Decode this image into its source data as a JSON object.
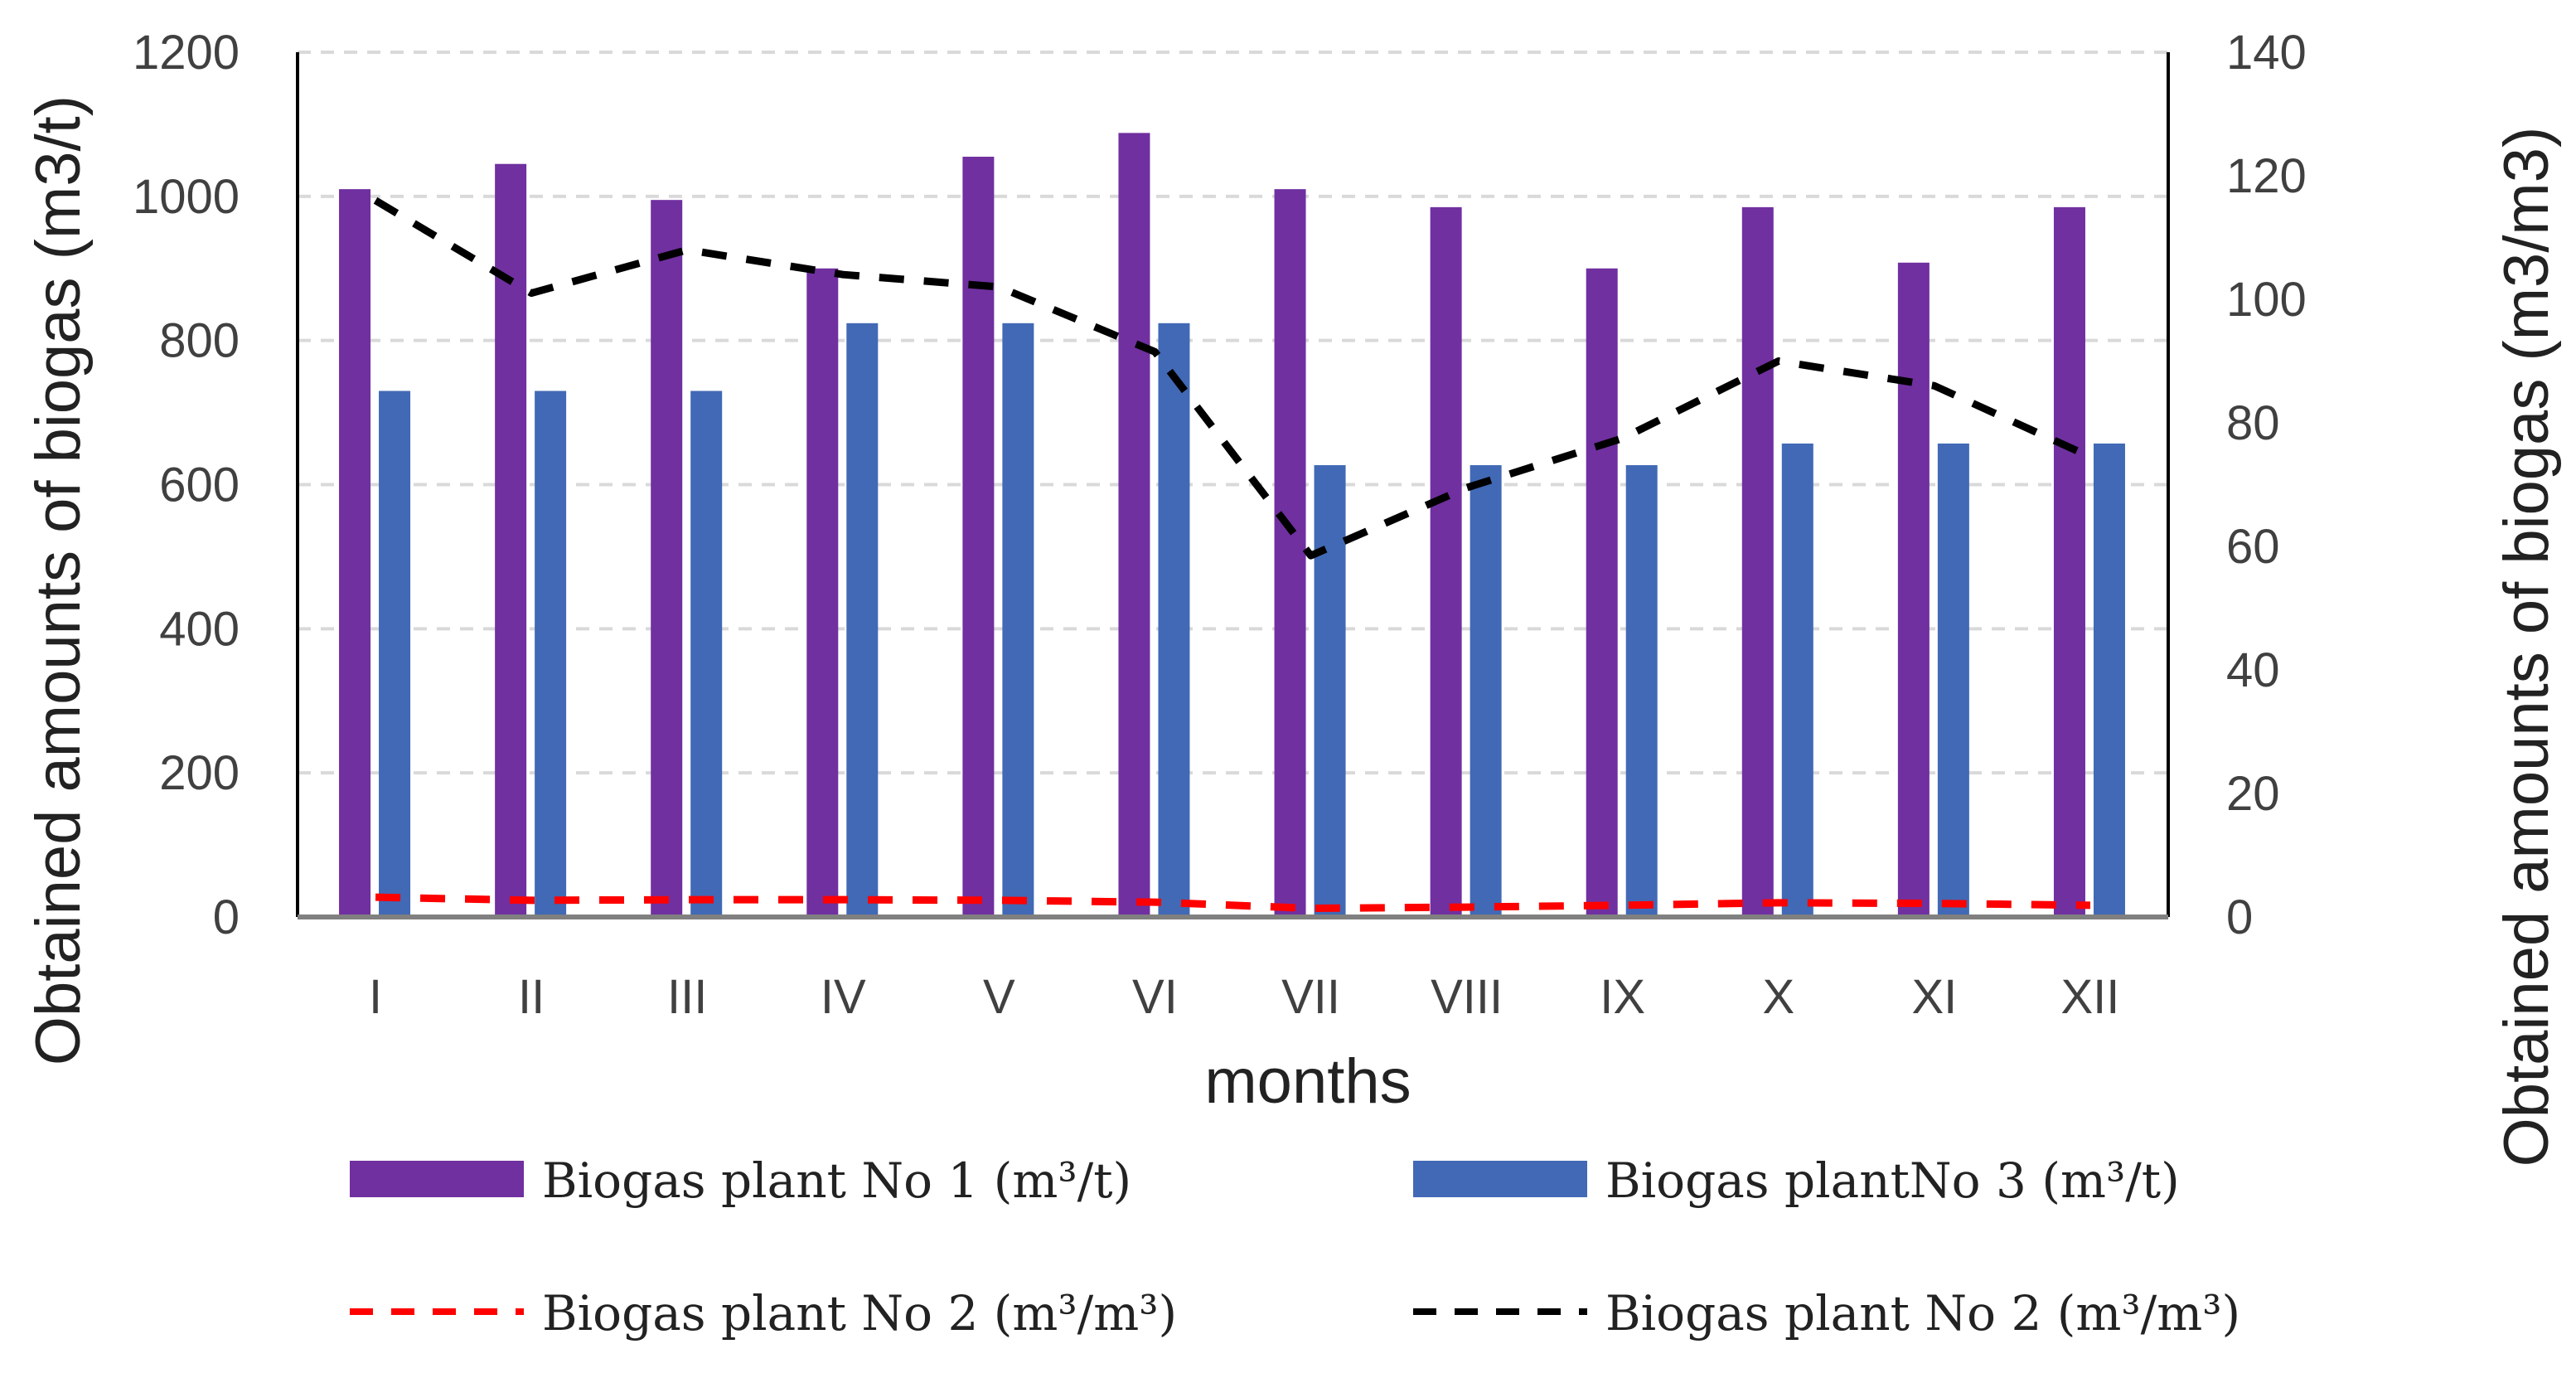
{
  "chart_data": {
    "type": "bar",
    "categories": [
      "I",
      "II",
      "III",
      "IV",
      "V",
      "VI",
      "VII",
      "VIII",
      "IX",
      "X",
      "XI",
      "XII"
    ],
    "xlabel": "months",
    "ylabel": "Obtained amounts of biogas (m3/t)",
    "ylabel_right": "Obtained amounts of biogas (m3/m3)",
    "ylim": [
      0,
      1200
    ],
    "yticks": [
      0,
      200,
      400,
      600,
      800,
      1000,
      1200
    ],
    "ylim_right": [
      0,
      140
    ],
    "yticks_right": [
      0,
      20,
      40,
      60,
      80,
      100,
      120,
      140
    ],
    "grid": true,
    "legend_position": "bottom",
    "series": [
      {
        "name": "Biogas plant  No 1 (m³/t)",
        "type": "bar",
        "axis": "left",
        "color": "#7030A0",
        "values": [
          1010,
          1045,
          995,
          900,
          1055,
          1088,
          1010,
          985,
          900,
          985,
          908,
          985
        ]
      },
      {
        "name": "Biogas plantNo 3 (m³/t)",
        "type": "bar",
        "axis": "left",
        "color": "#4169B5",
        "values": [
          730,
          730,
          730,
          824,
          824,
          824,
          627,
          627,
          627,
          657,
          657,
          657
        ]
      },
      {
        "name": "Biogas plant No 2 (m³/m³)",
        "type": "line",
        "axis": "right",
        "color": "#FF0000",
        "style": "dashed",
        "values": [
          3.2,
          2.7,
          2.8,
          2.8,
          2.7,
          2.4,
          1.4,
          1.6,
          1.9,
          2.3,
          2.2,
          1.9
        ]
      },
      {
        "name": "Biogas plant No 2 (m³/m³)",
        "type": "line",
        "axis": "right",
        "color": "#000000",
        "style": "dashed",
        "values": [
          116,
          101,
          108,
          104,
          102,
          91.5,
          58.5,
          69.5,
          77.5,
          90,
          86,
          74.5
        ]
      }
    ]
  }
}
